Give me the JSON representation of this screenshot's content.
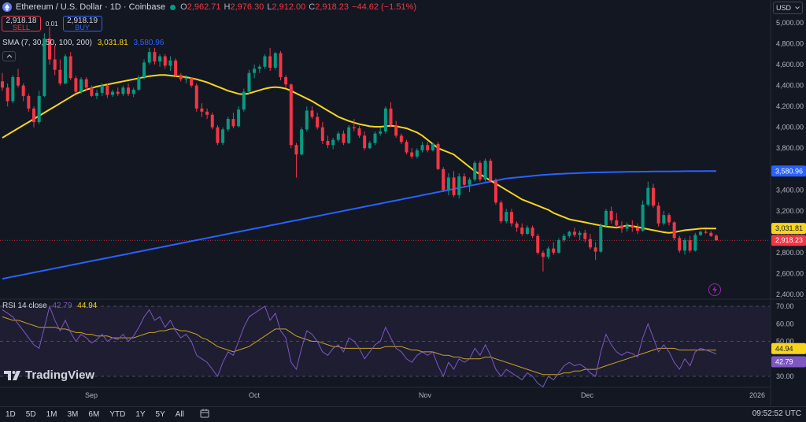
{
  "header": {
    "symbol": "Ethereum / U.S. Dollar · 1D · Coinbase",
    "open_label": "O",
    "open": "2,962.71",
    "high_label": "H",
    "high": "2,976.30",
    "low_label": "L",
    "low": "2,912.00",
    "close_label": "C",
    "close": "2,918.23",
    "change": "−44.62 (−1.51%)"
  },
  "trade": {
    "sell_price": "2,918.18",
    "sell_label": "SELL",
    "spread": "0.01",
    "buy_price": "2,918.19",
    "buy_label": "BUY"
  },
  "currency": "USD",
  "sma_legend": {
    "label": "SMA (7, 30, 50, 100, 200)",
    "value1": "3,031.81",
    "value2": "3,580.96"
  },
  "rsi_legend": {
    "label": "RSI 14 close",
    "value1": "42.79",
    "value2": "44.94"
  },
  "logo_text": "TradingView",
  "timeframes": [
    "1D",
    "5D",
    "1M",
    "3M",
    "6M",
    "YTD",
    "1Y",
    "5Y",
    "All"
  ],
  "clock": "09:52:52 UTC",
  "colors": {
    "up": "#089981",
    "down": "#f23645",
    "sma_short": "#f7d51d",
    "sma_long": "#2962ff",
    "rsi": "#7e57c2",
    "rsi_ma": "#c9a227"
  },
  "chart_data": {
    "type": "candlestick",
    "price_axis": {
      "ticks": [
        "5,000.00",
        "4,800.00",
        "4,600.00",
        "4,400.00",
        "4,200.00",
        "4,000.00",
        "3,800.00",
        "3,600.00",
        "3,400.00",
        "3,200.00",
        "3,000.00",
        "2,800.00",
        "2,600.00",
        "2,400.00"
      ],
      "range": [
        2400,
        5000
      ]
    },
    "time_axis": {
      "labels": [
        "Sep",
        "Oct",
        "Nov",
        "Dec",
        "2026"
      ]
    },
    "ohlc": [
      [
        4440,
        4520,
        4350,
        4380
      ],
      [
        4380,
        4420,
        4200,
        4250
      ],
      [
        4250,
        4500,
        4230,
        4480
      ],
      [
        4480,
        4560,
        4380,
        4400
      ],
      [
        4400,
        4420,
        4250,
        4300
      ],
      [
        4300,
        4320,
        4150,
        4180
      ],
      [
        4180,
        4200,
        4000,
        4050
      ],
      [
        4050,
        4350,
        4030,
        4300
      ],
      [
        4300,
        4900,
        4290,
        4850
      ],
      [
        4850,
        4960,
        4600,
        4650
      ],
      [
        4650,
        4780,
        4500,
        4550
      ],
      [
        4550,
        4650,
        4400,
        4420
      ],
      [
        4420,
        4700,
        4410,
        4680
      ],
      [
        4680,
        4720,
        4450,
        4470
      ],
      [
        4470,
        4490,
        4330,
        4340
      ],
      [
        4340,
        4480,
        4320,
        4460
      ],
      [
        4460,
        4480,
        4350,
        4380
      ],
      [
        4380,
        4400,
        4290,
        4300
      ],
      [
        4300,
        4360,
        4270,
        4330
      ],
      [
        4330,
        4420,
        4300,
        4400
      ],
      [
        4400,
        4420,
        4280,
        4310
      ],
      [
        4310,
        4360,
        4290,
        4340
      ],
      [
        4340,
        4380,
        4300,
        4320
      ],
      [
        4320,
        4400,
        4300,
        4380
      ],
      [
        4380,
        4420,
        4300,
        4320
      ],
      [
        4320,
        4380,
        4290,
        4360
      ],
      [
        4360,
        4500,
        4350,
        4480
      ],
      [
        4480,
        4650,
        4460,
        4620
      ],
      [
        4620,
        4760,
        4600,
        4720
      ],
      [
        4720,
        4760,
        4600,
        4630
      ],
      [
        4630,
        4700,
        4580,
        4680
      ],
      [
        4680,
        4700,
        4560,
        4590
      ],
      [
        4590,
        4680,
        4540,
        4640
      ],
      [
        4640,
        4660,
        4480,
        4500
      ],
      [
        4500,
        4520,
        4440,
        4460
      ],
      [
        4460,
        4500,
        4420,
        4470
      ],
      [
        4470,
        4480,
        4380,
        4400
      ],
      [
        4400,
        4420,
        4150,
        4180
      ],
      [
        4180,
        4230,
        4100,
        4150
      ],
      [
        4150,
        4180,
        4080,
        4120
      ],
      [
        4120,
        4140,
        3980,
        4000
      ],
      [
        4000,
        4020,
        3830,
        3850
      ],
      [
        3850,
        4000,
        3830,
        3980
      ],
      [
        3980,
        4100,
        3960,
        4080
      ],
      [
        4080,
        4140,
        3990,
        4010
      ],
      [
        4010,
        4200,
        4000,
        4170
      ],
      [
        4170,
        4370,
        4150,
        4340
      ],
      [
        4340,
        4550,
        4320,
        4520
      ],
      [
        4520,
        4600,
        4470,
        4560
      ],
      [
        4560,
        4600,
        4520,
        4580
      ],
      [
        4580,
        4700,
        4560,
        4680
      ],
      [
        4680,
        4760,
        4540,
        4570
      ],
      [
        4570,
        4720,
        4550,
        4710
      ],
      [
        4710,
        4730,
        4450,
        4480
      ],
      [
        4480,
        4500,
        4380,
        4410
      ],
      [
        4410,
        4420,
        3800,
        3830
      ],
      [
        3830,
        3850,
        3520,
        3740
      ],
      [
        3740,
        4000,
        3730,
        3980
      ],
      [
        3980,
        4200,
        3960,
        4160
      ],
      [
        4160,
        4200,
        4080,
        4100
      ],
      [
        4100,
        4140,
        3980,
        4000
      ],
      [
        4000,
        4050,
        3840,
        3870
      ],
      [
        3870,
        3920,
        3800,
        3830
      ],
      [
        3830,
        3900,
        3790,
        3880
      ],
      [
        3880,
        3960,
        3860,
        3940
      ],
      [
        3940,
        3970,
        3830,
        3850
      ],
      [
        3850,
        4020,
        3840,
        4000
      ],
      [
        4000,
        4080,
        3960,
        3990
      ],
      [
        3990,
        4010,
        3900,
        3920
      ],
      [
        3920,
        3960,
        3780,
        3800
      ],
      [
        3800,
        3870,
        3790,
        3850
      ],
      [
        3850,
        3960,
        3830,
        3940
      ],
      [
        3940,
        4000,
        3920,
        3960
      ],
      [
        3960,
        4200,
        3940,
        4180
      ],
      [
        4180,
        4240,
        4000,
        4020
      ],
      [
        4020,
        4060,
        3900,
        3920
      ],
      [
        3920,
        3940,
        3840,
        3860
      ],
      [
        3860,
        3880,
        3740,
        3760
      ],
      [
        3760,
        3800,
        3700,
        3720
      ],
      [
        3720,
        3800,
        3700,
        3780
      ],
      [
        3780,
        3860,
        3760,
        3830
      ],
      [
        3830,
        3860,
        3760,
        3780
      ],
      [
        3780,
        3850,
        3770,
        3840
      ],
      [
        3840,
        3860,
        3590,
        3600
      ],
      [
        3600,
        3620,
        3380,
        3400
      ],
      [
        3400,
        3560,
        3350,
        3520
      ],
      [
        3520,
        3580,
        3330,
        3350
      ],
      [
        3350,
        3560,
        3320,
        3530
      ],
      [
        3530,
        3560,
        3420,
        3450
      ],
      [
        3450,
        3520,
        3380,
        3500
      ],
      [
        3500,
        3680,
        3480,
        3660
      ],
      [
        3660,
        3680,
        3480,
        3500
      ],
      [
        3500,
        3700,
        3480,
        3680
      ],
      [
        3680,
        3700,
        3470,
        3490
      ],
      [
        3490,
        3510,
        3260,
        3280
      ],
      [
        3280,
        3300,
        3080,
        3100
      ],
      [
        3100,
        3220,
        3080,
        3190
      ],
      [
        3190,
        3220,
        3050,
        3080
      ],
      [
        3080,
        3100,
        3000,
        3040
      ],
      [
        3040,
        3080,
        2960,
        2980
      ],
      [
        2980,
        3060,
        2970,
        3040
      ],
      [
        3040,
        3060,
        2940,
        2960
      ],
      [
        2960,
        2980,
        2780,
        2800
      ],
      [
        2800,
        2820,
        2620,
        2760
      ],
      [
        2760,
        2860,
        2740,
        2840
      ],
      [
        2840,
        2900,
        2780,
        2800
      ],
      [
        2800,
        2940,
        2790,
        2920
      ],
      [
        2920,
        2980,
        2900,
        2960
      ],
      [
        2960,
        3010,
        2940,
        3000
      ],
      [
        3000,
        3040,
        2950,
        2970
      ],
      [
        2970,
        3010,
        2920,
        2990
      ],
      [
        2990,
        3020,
        2900,
        2930
      ],
      [
        2930,
        2980,
        2830,
        2850
      ],
      [
        2850,
        2900,
        2730,
        2810
      ],
      [
        2810,
        3080,
        2800,
        3060
      ],
      [
        3060,
        3220,
        3050,
        3200
      ],
      [
        3200,
        3240,
        3080,
        3110
      ],
      [
        3110,
        3180,
        3040,
        3060
      ],
      [
        3060,
        3100,
        2990,
        3030
      ],
      [
        3030,
        3090,
        3000,
        3060
      ],
      [
        3060,
        3110,
        3000,
        3040
      ],
      [
        3040,
        3080,
        2980,
        3010
      ],
      [
        3010,
        3300,
        3000,
        3260
      ],
      [
        3260,
        3480,
        3240,
        3420
      ],
      [
        3420,
        3460,
        3230,
        3250
      ],
      [
        3250,
        3280,
        3050,
        3080
      ],
      [
        3080,
        3200,
        3060,
        3160
      ],
      [
        3160,
        3180,
        3060,
        3090
      ],
      [
        3090,
        3100,
        2920,
        2940
      ],
      [
        2940,
        2960,
        2800,
        2820
      ],
      [
        2820,
        2940,
        2780,
        2920
      ],
      [
        2920,
        2960,
        2800,
        2820
      ],
      [
        2820,
        2990,
        2810,
        2970
      ],
      [
        2970,
        3010,
        2960,
        3000
      ],
      [
        3000,
        3020,
        2980,
        2990
      ],
      [
        2990,
        3010,
        2950,
        2960
      ],
      [
        2962.71,
        2976.3,
        2912.0,
        2918.23
      ]
    ],
    "sma_30": [
      3900,
      3930,
      3960,
      3990,
      4020,
      4050,
      4080,
      4110,
      4140,
      4170,
      4200,
      4230,
      4260,
      4290,
      4320,
      4340,
      4360,
      4375,
      4390,
      4400,
      4410,
      4420,
      4430,
      4440,
      4450,
      4460,
      4470,
      4480,
      4490,
      4495,
      4500,
      4500,
      4495,
      4490,
      4485,
      4480,
      4470,
      4460,
      4445,
      4430,
      4410,
      4390,
      4370,
      4350,
      4335,
      4320,
      4315,
      4325,
      4340,
      4355,
      4370,
      4380,
      4385,
      4380,
      4370,
      4350,
      4325,
      4300,
      4275,
      4250,
      4220,
      4190,
      4160,
      4130,
      4100,
      4080,
      4060,
      4045,
      4030,
      4020,
      4010,
      4005,
      4005,
      4010,
      4015,
      4010,
      4000,
      3990,
      3970,
      3950,
      3920,
      3880,
      3840,
      3800,
      3780,
      3760,
      3740,
      3700,
      3660,
      3620,
      3580,
      3550,
      3520,
      3490,
      3460,
      3430,
      3400,
      3370,
      3340,
      3310,
      3290,
      3270,
      3250,
      3230,
      3210,
      3180,
      3160,
      3140,
      3120,
      3110,
      3100,
      3090,
      3080,
      3070,
      3060,
      3050,
      3045,
      3040,
      3050,
      3060,
      3055,
      3045,
      3035,
      3025,
      3015,
      3005,
      2995,
      2990,
      2995,
      3005,
      3015,
      3020,
      3025,
      3030,
      3032,
      3031,
      3031.81
    ],
    "sma_200": [
      2550,
      2560,
      2570,
      2580,
      2590,
      2600,
      2610,
      2620,
      2630,
      2640,
      2650,
      2660,
      2670,
      2680,
      2690,
      2700,
      2710,
      2720,
      2730,
      2740,
      2750,
      2760,
      2770,
      2780,
      2790,
      2800,
      2810,
      2820,
      2830,
      2840,
      2850,
      2860,
      2870,
      2880,
      2890,
      2900,
      2910,
      2920,
      2930,
      2940,
      2950,
      2960,
      2970,
      2980,
      2990,
      3000,
      3010,
      3020,
      3030,
      3040,
      3050,
      3060,
      3070,
      3080,
      3090,
      3100,
      3110,
      3120,
      3130,
      3140,
      3150,
      3160,
      3170,
      3180,
      3190,
      3200,
      3210,
      3220,
      3230,
      3240,
      3250,
      3260,
      3270,
      3280,
      3290,
      3300,
      3310,
      3320,
      3330,
      3340,
      3350,
      3360,
      3370,
      3380,
      3390,
      3400,
      3410,
      3420,
      3430,
      3440,
      3450,
      3460,
      3470,
      3480,
      3490,
      3500,
      3510,
      3515,
      3520,
      3525,
      3530,
      3535,
      3540,
      3545,
      3548,
      3551,
      3554,
      3556,
      3558,
      3560,
      3562,
      3564,
      3566,
      3568,
      3569,
      3570,
      3571,
      3572,
      3573,
      3574,
      3575,
      3575,
      3576,
      3576,
      3577,
      3577,
      3578,
      3578,
      3579,
      3579,
      3580,
      3580,
      3580,
      3580.5,
      3580.7,
      3580.9,
      3580.96
    ],
    "rsi": [
      68,
      66,
      64,
      60,
      56,
      52,
      48,
      46,
      58,
      70,
      62,
      56,
      62,
      55,
      50,
      54,
      52,
      49,
      51,
      54,
      50,
      52,
      51,
      54,
      50,
      53,
      58,
      64,
      68,
      62,
      64,
      58,
      62,
      56,
      52,
      54,
      50,
      42,
      40,
      38,
      34,
      30,
      38,
      44,
      42,
      50,
      58,
      64,
      66,
      68,
      70,
      62,
      66,
      56,
      52,
      38,
      34,
      46,
      56,
      54,
      50,
      44,
      42,
      46,
      48,
      44,
      52,
      50,
      46,
      40,
      44,
      48,
      50,
      58,
      52,
      46,
      44,
      40,
      38,
      42,
      44,
      42,
      44,
      36,
      30,
      38,
      34,
      40,
      38,
      40,
      46,
      42,
      48,
      42,
      34,
      30,
      34,
      32,
      30,
      28,
      32,
      30,
      26,
      24,
      30,
      28,
      32,
      36,
      38,
      36,
      37,
      35,
      32,
      30,
      44,
      54,
      48,
      44,
      42,
      44,
      43,
      41,
      52,
      60,
      52,
      44,
      48,
      44,
      38,
      34,
      40,
      36,
      44,
      46,
      45,
      44,
      42.79
    ],
    "rsi_ma": [
      64,
      63,
      62,
      62,
      61,
      60,
      59,
      58,
      58,
      58,
      58,
      57,
      57,
      56,
      55,
      55,
      54,
      54,
      53,
      53,
      53,
      52,
      52,
      52,
      52,
      52,
      53,
      54,
      55,
      55,
      56,
      56,
      57,
      57,
      56,
      56,
      55,
      54,
      52,
      51,
      49,
      47,
      46,
      45,
      44,
      45,
      46,
      47,
      49,
      51,
      53,
      55,
      57,
      57,
      57,
      55,
      53,
      52,
      51,
      50,
      50,
      49,
      48,
      47,
      47,
      46,
      46,
      46,
      46,
      46,
      46,
      46,
      46,
      47,
      47,
      47,
      47,
      46,
      45,
      45,
      44,
      44,
      44,
      43,
      42,
      42,
      41,
      41,
      40,
      40,
      40,
      40,
      41,
      41,
      40,
      39,
      38,
      37,
      36,
      35,
      34,
      33,
      32,
      31,
      31,
      31,
      31,
      32,
      32,
      33,
      33,
      34,
      34,
      34,
      35,
      36,
      37,
      38,
      39,
      40,
      41,
      42,
      43,
      44,
      45,
      46,
      46,
      46,
      46,
      45,
      45,
      45,
      45,
      45,
      45,
      45,
      44.94
    ],
    "rsi_axis": {
      "ticks": [
        "70.00",
        "60.00",
        "50.00",
        "40.00",
        "30.00"
      ],
      "range": [
        22,
        75
      ],
      "upper": 70,
      "middle": 50,
      "lower": 30
    },
    "last_labels": {
      "sma_long": "3,580.96",
      "sma_short": "3,031.81",
      "close": "2,918.23",
      "rsi_ma": "44.94",
      "rsi": "42.79"
    }
  }
}
